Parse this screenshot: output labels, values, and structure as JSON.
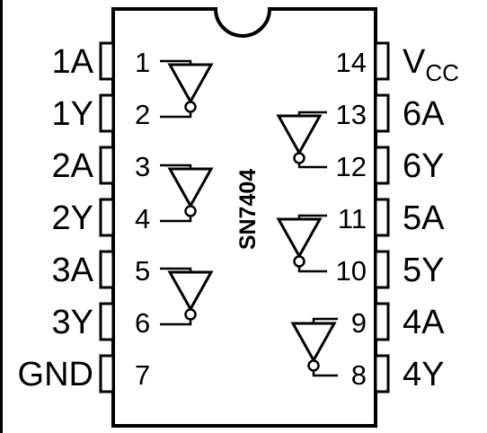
{
  "part_number": "SN7404",
  "left_pins": [
    {
      "label": "1A",
      "number": "1"
    },
    {
      "label": "1Y",
      "number": "2"
    },
    {
      "label": "2A",
      "number": "3"
    },
    {
      "label": "2Y",
      "number": "4"
    },
    {
      "label": "3A",
      "number": "5"
    },
    {
      "label": "3Y",
      "number": "6"
    },
    {
      "label": "GND",
      "number": "7"
    }
  ],
  "right_pins": [
    {
      "label": "V",
      "label_sub": "CC",
      "number": "14"
    },
    {
      "label": "6A",
      "number": "13"
    },
    {
      "label": "6Y",
      "number": "12"
    },
    {
      "label": "5A",
      "number": "11"
    },
    {
      "label": "5Y",
      "number": "10"
    },
    {
      "label": "4A",
      "number": "9"
    },
    {
      "label": "4Y",
      "number": "8"
    }
  ]
}
